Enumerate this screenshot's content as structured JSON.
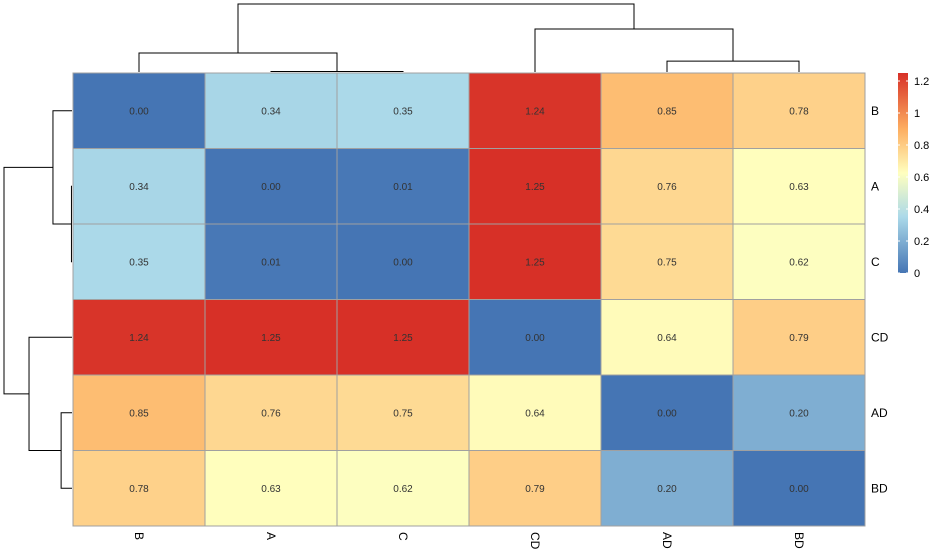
{
  "chart_data": {
    "type": "heatmap",
    "title": "",
    "xlabel": "",
    "ylabel": "",
    "rows": [
      "B",
      "A",
      "C",
      "CD",
      "AD",
      "BD"
    ],
    "cols": [
      "B",
      "A",
      "C",
      "CD",
      "AD",
      "BD"
    ],
    "values": [
      [
        0.0,
        0.34,
        0.35,
        1.24,
        0.85,
        0.78
      ],
      [
        0.34,
        0.0,
        0.01,
        1.25,
        0.76,
        0.63
      ],
      [
        0.35,
        0.01,
        0.0,
        1.25,
        0.75,
        0.62
      ],
      [
        1.24,
        1.25,
        1.25,
        0.0,
        0.64,
        0.79
      ],
      [
        0.85,
        0.76,
        0.75,
        0.64,
        0.0,
        0.2
      ],
      [
        0.78,
        0.63,
        0.62,
        0.79,
        0.2,
        0.0
      ]
    ],
    "cell_labels": [
      [
        "0.00",
        "0.34",
        "0.35",
        "1.24",
        "0.85",
        "0.78"
      ],
      [
        "0.34",
        "0.00",
        "0.01",
        "1.25",
        "0.76",
        "0.63"
      ],
      [
        "0.35",
        "0.01",
        "0.00",
        "1.25",
        "0.75",
        "0.62"
      ],
      [
        "1.24",
        "1.25",
        "1.25",
        "0.00",
        "0.64",
        "0.79"
      ],
      [
        "0.85",
        "0.76",
        "0.75",
        "0.64",
        "0.00",
        "0.20"
      ],
      [
        "0.78",
        "0.63",
        "0.62",
        "0.79",
        "0.20",
        "0.00"
      ]
    ],
    "legend": {
      "position": "right",
      "min": 0,
      "max": 1.25,
      "ticks": [
        "0",
        "0.2",
        "0.4",
        "0.6",
        "0.8",
        "1",
        "1.2"
      ],
      "tick_values": [
        0,
        0.2,
        0.4,
        0.6,
        0.8,
        1.0,
        1.2
      ]
    },
    "colors": {
      "low": "#4575b4",
      "mid_low": "#abd9e9",
      "mid": "#ffffbf",
      "mid_high": "#fdae61",
      "high": "#d73027",
      "grid_line": "#a0a0a0",
      "dendrogram": "#000000"
    },
    "dendrogram": {
      "cluster_order": [
        "B",
        "A",
        "C",
        "CD",
        "AD",
        "BD"
      ],
      "merges": [
        [
          "A",
          "C",
          0.01
        ],
        [
          "AD",
          "BD",
          0.2
        ],
        [
          "B",
          "A+C",
          0.35
        ],
        [
          "CD",
          "AD+BD",
          0.79
        ],
        [
          "B+A+C",
          "CD+AD+BD",
          1.25
        ]
      ]
    }
  }
}
